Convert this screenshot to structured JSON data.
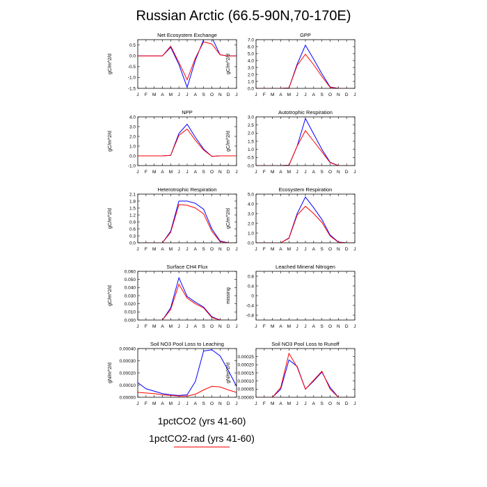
{
  "title": "Russian Arctic (66.5-90N,70-170E)",
  "colors": {
    "exp1": "#0000ff",
    "exp2": "#ff0000"
  },
  "legend": {
    "exp1": "1pctCO2 (yrs 41-60)",
    "exp2": "1pctCO2-rad (yrs 41-60)"
  },
  "chart_data": [
    {
      "type": "line",
      "title": "Net Ecosystem Exchange",
      "ylabel": "gC/m^2/d",
      "x": [
        "J",
        "F",
        "M",
        "A",
        "M",
        "J",
        "J",
        "A",
        "S",
        "O",
        "N",
        "D",
        "J"
      ],
      "ylim": [
        -1.5,
        0.75
      ],
      "yticks": [
        -1.5,
        -1.0,
        -0.5,
        0.0,
        0.5
      ],
      "yticklabels": [
        "-1.5",
        "-1.0",
        "-0.5",
        "0.0",
        "0.5"
      ],
      "series": [
        {
          "values": [
            0.0,
            0.0,
            0.0,
            0.0,
            0.4,
            -0.4,
            -1.45,
            -0.2,
            0.75,
            0.85,
            0.05,
            0.0,
            0.0
          ]
        },
        {
          "values": [
            0.0,
            0.0,
            0.0,
            0.0,
            0.45,
            -0.3,
            -1.1,
            -0.1,
            0.65,
            0.55,
            0.05,
            0.0,
            0.0
          ]
        }
      ]
    },
    {
      "type": "line",
      "title": "GPP",
      "ylabel": "gC/m^2/d",
      "x": [
        "J",
        "F",
        "M",
        "A",
        "M",
        "J",
        "J",
        "A",
        "S",
        "O",
        "N",
        "D",
        "J"
      ],
      "ylim": [
        0,
        7.0
      ],
      "yticks": [
        0,
        1,
        2,
        3,
        4,
        5,
        6,
        7
      ],
      "yticklabels": [
        "0.0",
        "1.0",
        "2.0",
        "3.0",
        "4.0",
        "5.0",
        "6.0",
        "7.0"
      ],
      "series": [
        {
          "values": [
            0,
            0,
            0,
            0,
            0.05,
            3.5,
            6.2,
            4.2,
            2.1,
            0.2,
            0,
            0,
            0
          ]
        },
        {
          "values": [
            0,
            0,
            0,
            0,
            0.05,
            3.3,
            4.9,
            3.4,
            1.7,
            0.15,
            0,
            0,
            0
          ]
        }
      ]
    },
    {
      "type": "line",
      "title": "NPP",
      "ylabel": "gC/m^2/d",
      "x": [
        "J",
        "F",
        "M",
        "A",
        "M",
        "J",
        "J",
        "A",
        "S",
        "O",
        "N",
        "D",
        "J"
      ],
      "ylim": [
        -1.0,
        4.0
      ],
      "yticks": [
        -1,
        0,
        1,
        2,
        3,
        4
      ],
      "yticklabels": [
        "-1.0",
        "0.0",
        "1.0",
        "2.0",
        "3.0",
        "4.0"
      ],
      "series": [
        {
          "values": [
            0,
            0,
            0,
            0,
            0.05,
            2.3,
            3.25,
            1.9,
            0.7,
            -0.05,
            0,
            0,
            0
          ]
        },
        {
          "values": [
            0,
            0,
            0,
            0,
            0.05,
            2.1,
            2.75,
            1.6,
            0.6,
            -0.05,
            0,
            0,
            0
          ]
        }
      ]
    },
    {
      "type": "line",
      "title": "Autotrophic Respiration",
      "ylabel": "gC/m^2/d",
      "x": [
        "J",
        "F",
        "M",
        "A",
        "M",
        "J",
        "J",
        "A",
        "S",
        "O",
        "N",
        "D",
        "J"
      ],
      "ylim": [
        0,
        3.0
      ],
      "yticks": [
        0,
        0.5,
        1,
        1.5,
        2,
        2.5,
        3
      ],
      "yticklabels": [
        "0.0",
        "0.5",
        "1.0",
        "1.5",
        "2.0",
        "2.5",
        "3.0"
      ],
      "series": [
        {
          "values": [
            0,
            0,
            0,
            0,
            0.02,
            1.2,
            2.9,
            1.95,
            1.0,
            0.2,
            0,
            0,
            0
          ]
        },
        {
          "values": [
            0,
            0,
            0,
            0,
            0.02,
            1.2,
            2.15,
            1.5,
            0.85,
            0.18,
            0,
            0,
            0
          ]
        }
      ]
    },
    {
      "type": "line",
      "title": "Heterotrophic Respiration",
      "ylabel": "gC/m^2/d",
      "x": [
        "J",
        "F",
        "M",
        "A",
        "M",
        "J",
        "J",
        "A",
        "S",
        "O",
        "N",
        "D",
        "J"
      ],
      "ylim": [
        0,
        2.1
      ],
      "yticks": [
        0,
        0.3,
        0.6,
        0.9,
        1.2,
        1.5,
        1.8,
        2.1
      ],
      "yticklabels": [
        "0.0",
        "0.3",
        "0.6",
        "0.9",
        "1.2",
        "1.5",
        "1.8",
        "2.1"
      ],
      "series": [
        {
          "values": [
            0,
            0,
            0,
            0,
            0.5,
            1.8,
            1.8,
            1.7,
            1.45,
            0.6,
            0.08,
            0,
            0
          ]
        },
        {
          "values": [
            0,
            0,
            0,
            0,
            0.45,
            1.65,
            1.62,
            1.5,
            1.25,
            0.5,
            0.05,
            0,
            0
          ]
        }
      ]
    },
    {
      "type": "line",
      "title": "Ecosystem Respiration",
      "ylabel": "gC/m^2/d",
      "x": [
        "J",
        "F",
        "M",
        "A",
        "M",
        "J",
        "J",
        "A",
        "S",
        "O",
        "N",
        "D",
        "J"
      ],
      "ylim": [
        0,
        5.0
      ],
      "yticks": [
        0,
        1,
        2,
        3,
        4,
        5
      ],
      "yticklabels": [
        "0.0",
        "1.0",
        "2.0",
        "3.0",
        "4.0",
        "5.0"
      ],
      "series": [
        {
          "values": [
            0,
            0,
            0,
            0,
            0.5,
            3.0,
            4.7,
            3.6,
            2.4,
            0.8,
            0.08,
            0,
            0
          ]
        },
        {
          "values": [
            0,
            0,
            0,
            0,
            0.45,
            2.85,
            3.75,
            3.0,
            2.1,
            0.7,
            0.05,
            0,
            0
          ]
        }
      ]
    },
    {
      "type": "line",
      "title": "Surface CH4 Flux",
      "ylabel": "gC/m^2/d",
      "x": [
        "J",
        "F",
        "M",
        "A",
        "M",
        "J",
        "J",
        "A",
        "S",
        "O",
        "N",
        "D",
        "J"
      ],
      "ylim": [
        0,
        0.06
      ],
      "yticks": [
        0,
        0.01,
        0.02,
        0.03,
        0.04,
        0.05,
        0.06
      ],
      "yticklabels": [
        "0.000",
        "0.010",
        "0.020",
        "0.030",
        "0.040",
        "0.050",
        "0.060"
      ],
      "series": [
        {
          "values": [
            null,
            null,
            null,
            0.0,
            0.015,
            0.052,
            0.029,
            0.022,
            0.016,
            0.004,
            0.0,
            0.0,
            null
          ]
        },
        {
          "values": [
            null,
            null,
            null,
            0.0,
            0.013,
            0.044,
            0.027,
            0.02,
            0.015,
            0.003,
            0.0,
            0.0,
            null
          ]
        }
      ]
    },
    {
      "type": "line",
      "title": "Leached Mineral Nitrogen",
      "ylabel": "missing",
      "x": [
        "J",
        "F",
        "M",
        "A",
        "M",
        "J",
        "J",
        "A",
        "S",
        "O",
        "N",
        "D",
        "J"
      ],
      "ylim": [
        -1.0,
        1.0
      ],
      "yticks": [
        -0.8,
        -0.4,
        0,
        0.4,
        0.8
      ],
      "yticklabels": [
        "-0.8",
        "-0.4",
        "0",
        "0.4",
        "0.8"
      ],
      "series": []
    },
    {
      "type": "line",
      "title": "Soil NO3 Pool Loss to Leaching",
      "ylabel": "gN/m^2/d",
      "x": [
        "J",
        "F",
        "M",
        "A",
        "M",
        "J",
        "J",
        "A",
        "S",
        "O",
        "N",
        "D",
        "J"
      ],
      "ylim": [
        0,
        0.0004
      ],
      "yticks": [
        0,
        0.0001,
        0.0002,
        0.0003,
        0.0004
      ],
      "yticklabels": [
        "0.00000",
        "0.00010",
        "0.00020",
        "0.00030",
        "0.00040"
      ],
      "series": [
        {
          "values": [
            0.00012,
            7e-05,
            5e-05,
            3e-05,
            2e-05,
            1.5e-05,
            2e-05,
            0.00013,
            0.00038,
            0.00039,
            0.00034,
            0.00022,
            9e-05
          ]
        },
        {
          "values": [
            4e-05,
            3.5e-05,
            3e-05,
            2e-05,
            1.5e-05,
            1e-05,
            1e-05,
            2.5e-05,
            6e-05,
            9e-05,
            8.5e-05,
            6e-05,
            4e-05
          ]
        }
      ]
    },
    {
      "type": "line",
      "title": "Soil NO3 Pool Loss to Runoff",
      "ylabel": "gN/m^2/d",
      "x": [
        "J",
        "F",
        "M",
        "A",
        "M",
        "J",
        "J",
        "A",
        "S",
        "O",
        "N",
        "D",
        "J"
      ],
      "ylim": [
        0,
        0.0003
      ],
      "yticks": [
        0,
        5e-05,
        0.0001,
        0.00015,
        0.0002,
        0.00025
      ],
      "yticklabels": [
        "0.00000",
        "0.00005",
        "0.00010",
        "0.00015",
        "0.00020",
        "0.00025"
      ],
      "series": [
        {
          "values": [
            0,
            0,
            0,
            5e-05,
            0.00023,
            0.00019,
            5e-05,
            0.0001,
            0.000155,
            6e-05,
            0,
            0,
            0
          ]
        },
        {
          "values": [
            0,
            0,
            0,
            6e-05,
            0.00027,
            0.000185,
            5e-05,
            0.000105,
            0.00016,
            5e-05,
            0,
            0,
            0
          ]
        }
      ]
    }
  ]
}
